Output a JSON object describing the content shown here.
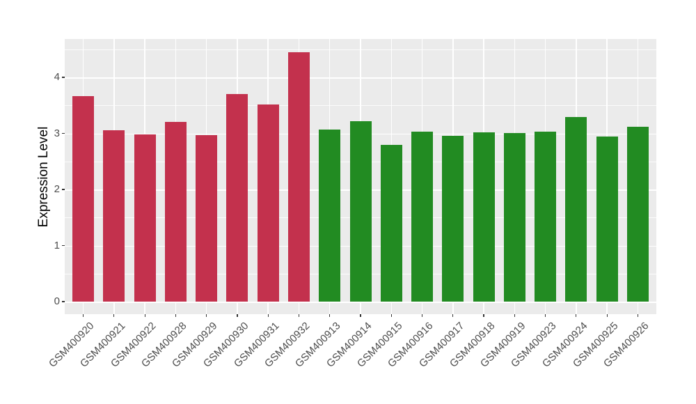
{
  "chart_data": {
    "type": "bar",
    "ylabel": "Expression Level",
    "xlabel": "",
    "categories": [
      "GSM400920",
      "GSM400921",
      "GSM400922",
      "GSM400928",
      "GSM400929",
      "GSM400930",
      "GSM400931",
      "GSM400932",
      "GSM400913",
      "GSM400914",
      "GSM400915",
      "GSM400916",
      "GSM400917",
      "GSM400918",
      "GSM400919",
      "GSM400923",
      "GSM400924",
      "GSM400925",
      "GSM400926"
    ],
    "values": [
      3.66,
      3.05,
      2.98,
      3.2,
      2.97,
      3.7,
      3.52,
      4.45,
      3.07,
      3.22,
      2.8,
      3.03,
      2.96,
      3.02,
      3.01,
      3.03,
      3.29,
      2.94,
      3.12
    ],
    "bar_colors": [
      "#C3314D",
      "#C3314D",
      "#C3314D",
      "#C3314D",
      "#C3314D",
      "#C3314D",
      "#C3314D",
      "#C3314D",
      "#228B22",
      "#228B22",
      "#228B22",
      "#228B22",
      "#228B22",
      "#228B22",
      "#228B22",
      "#228B22",
      "#228B22",
      "#228B22",
      "#228B22"
    ],
    "y_ticks": [
      0,
      1,
      2,
      3,
      4
    ],
    "y_minor_ticks": [
      0.5,
      1.5,
      2.5,
      3.5,
      4.5
    ],
    "ylim": [
      0,
      4.67
    ],
    "grid": true,
    "legend": "none",
    "colors": {
      "group_red": "#C3314D",
      "group_green": "#228B22",
      "panel_bg": "#EBEBEB",
      "grid": "#FFFFFF",
      "axis_text": "#4D4D4D",
      "axis_title": "#000000",
      "tick_mark": "#333333",
      "background": "#FFFFFF"
    }
  }
}
